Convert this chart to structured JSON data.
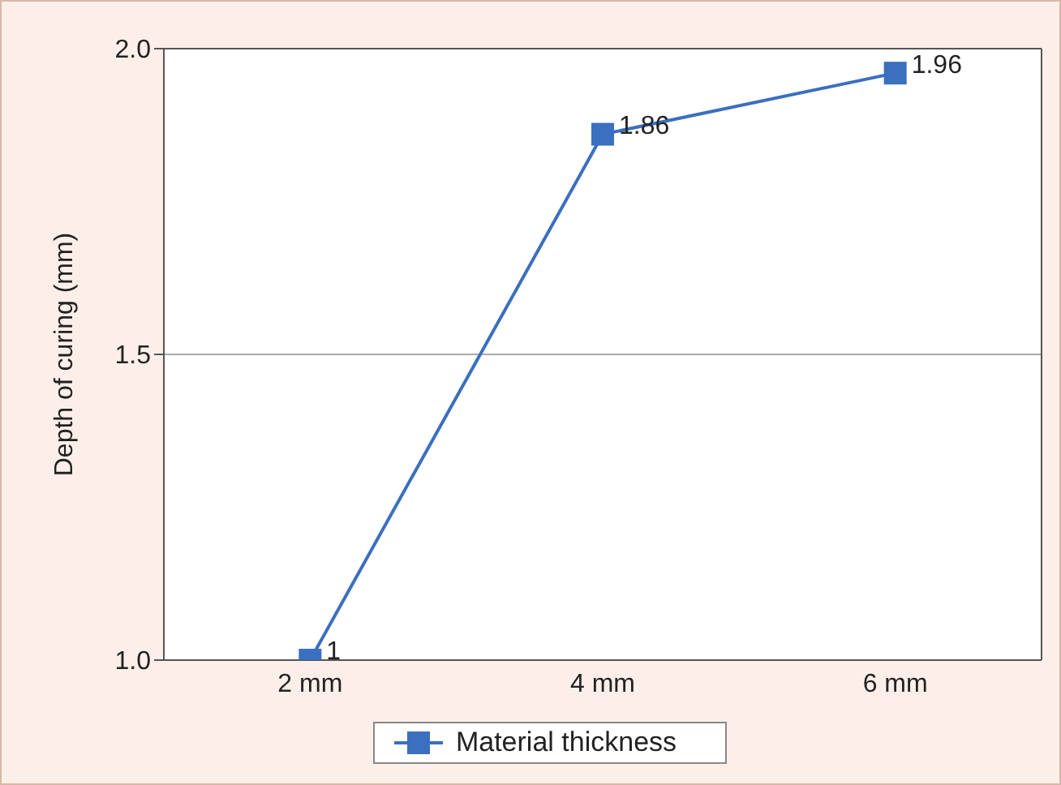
{
  "chart_data": {
    "type": "line",
    "ylabel": "Depth of curing (mm)",
    "categories": [
      "2 mm",
      "4 mm",
      "6 mm"
    ],
    "series": [
      {
        "name": "Material thickness",
        "color": "#3b6fbf",
        "values": [
          1,
          1.86,
          1.96
        ]
      }
    ],
    "ylim": [
      1,
      2
    ],
    "yticks": [
      {
        "value": 1,
        "label": "1.0"
      },
      {
        "value": 1.5,
        "label": "1.5"
      },
      {
        "value": 2,
        "label": "2.0"
      }
    ],
    "grid": "y",
    "legend": "bottom",
    "marker": "square",
    "line_style": "solid",
    "data_labels": true
  }
}
